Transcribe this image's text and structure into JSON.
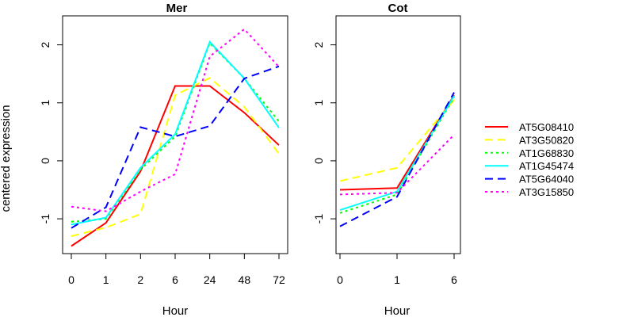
{
  "chart_data": [
    {
      "type": "line",
      "title": "Mer",
      "xlabel": "Hour",
      "ylabel": "centered expression",
      "categories": [
        "0",
        "1",
        "2",
        "6",
        "24",
        "48",
        "72"
      ],
      "ylim": [
        -1.6,
        2.5
      ],
      "yticks": [
        -1,
        0,
        1,
        2
      ],
      "series": [
        {
          "name": "AT5G08410",
          "color": "#ff0000",
          "dash": "solid",
          "values": [
            -1.47,
            -1.07,
            -0.18,
            1.29,
            1.29,
            0.83,
            0.27
          ]
        },
        {
          "name": "AT3G50820",
          "color": "#ffff00",
          "dash": "dashed",
          "values": [
            -1.3,
            -1.15,
            -0.92,
            1.13,
            1.43,
            0.93,
            0.12
          ]
        },
        {
          "name": "AT1G68830",
          "color": "#00ff00",
          "dash": "dotted",
          "values": [
            -1.05,
            -1.0,
            -0.15,
            0.42,
            2.03,
            1.42,
            0.68
          ]
        },
        {
          "name": "AT1G45474",
          "color": "#00ffff",
          "dash": "solid",
          "values": [
            -1.1,
            -0.98,
            -0.12,
            0.46,
            2.05,
            1.42,
            0.57
          ]
        },
        {
          "name": "AT5G64040",
          "color": "#0000ff",
          "dash": "dashed",
          "values": [
            -1.16,
            -0.8,
            0.58,
            0.42,
            0.6,
            1.42,
            1.63
          ]
        },
        {
          "name": "AT3G15850",
          "color": "#ff00ff",
          "dash": "dotted",
          "values": [
            -0.79,
            -0.87,
            -0.53,
            -0.23,
            1.8,
            2.27,
            1.62
          ]
        }
      ]
    },
    {
      "type": "line",
      "title": "Cot",
      "xlabel": "Hour",
      "categories": [
        "0",
        "1",
        "6"
      ],
      "ylim": [
        -1.6,
        2.5
      ],
      "yticks": [
        -1,
        0,
        1,
        2
      ],
      "series": [
        {
          "name": "AT5G08410",
          "color": "#ff0000",
          "dash": "solid",
          "values": [
            -0.5,
            -0.47,
            1.13
          ]
        },
        {
          "name": "AT3G50820",
          "color": "#ffff00",
          "dash": "dashed",
          "values": [
            -0.35,
            -0.12,
            1.05
          ]
        },
        {
          "name": "AT1G68830",
          "color": "#00ff00",
          "dash": "dotted",
          "values": [
            -0.9,
            -0.58,
            1.1
          ]
        },
        {
          "name": "AT1G45474",
          "color": "#00ffff",
          "dash": "solid",
          "values": [
            -0.85,
            -0.53,
            1.12
          ]
        },
        {
          "name": "AT5G64040",
          "color": "#0000ff",
          "dash": "dashed",
          "values": [
            -1.13,
            -0.62,
            1.18
          ]
        },
        {
          "name": "AT3G15850",
          "color": "#ff00ff",
          "dash": "dotted",
          "values": [
            -0.58,
            -0.55,
            0.45
          ]
        }
      ]
    }
  ],
  "legend": {
    "position": "right",
    "entries": [
      {
        "label": "AT5G08410",
        "color": "#ff0000",
        "dash": "solid"
      },
      {
        "label": "AT3G50820",
        "color": "#ffff00",
        "dash": "dashed"
      },
      {
        "label": "AT1G68830",
        "color": "#00ff00",
        "dash": "dotted"
      },
      {
        "label": "AT1G45474",
        "color": "#00ffff",
        "dash": "solid"
      },
      {
        "label": "AT5G64040",
        "color": "#0000ff",
        "dash": "dashed"
      },
      {
        "label": "AT3G15850",
        "color": "#ff00ff",
        "dash": "dotted"
      }
    ]
  }
}
